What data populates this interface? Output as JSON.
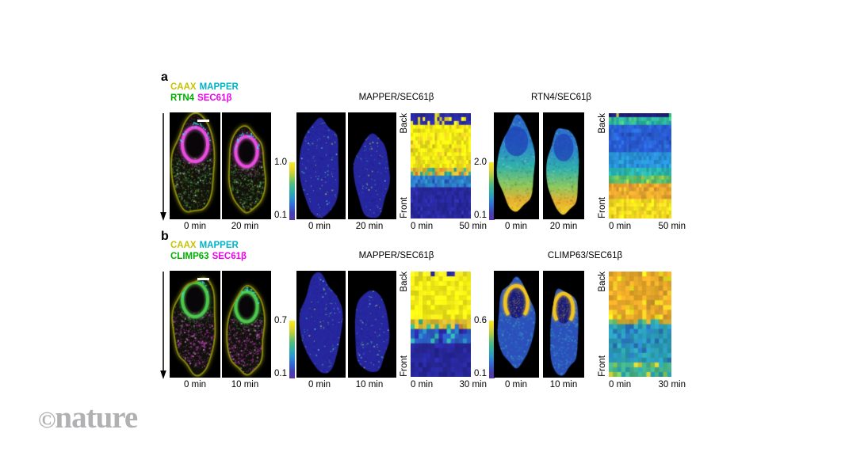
{
  "watermark": {
    "symbol": "©",
    "name": "nature"
  },
  "colors": {
    "caax": "#c9c400",
    "mapper": "#00b4c8",
    "green": "#00ae00",
    "sec61": "#ee00ee"
  },
  "panel_a": {
    "label": "a",
    "legend": {
      "caax": "CAAX",
      "mapper": "MAPPER",
      "marker2": "RTN4",
      "sec61": "SEC61β"
    },
    "merged": {
      "t0": "0 min",
      "t1": "20 min"
    },
    "cb1": {
      "max": "1.0",
      "min": "0.1"
    },
    "group1": {
      "title": "MAPPER/SEC61β",
      "t0": "0 min",
      "t1": "20 min",
      "kymo": {
        "back": "Back",
        "front": "Front",
        "t0": "0 min",
        "t1": "50 min"
      }
    },
    "cb2": {
      "max": "2.0",
      "min": "0.1"
    },
    "group2": {
      "title": "RTN4/SEC61β",
      "t0": "0 min",
      "t1": "20 min",
      "kymo": {
        "back": "Back",
        "front": "Front",
        "t0": "0 min",
        "t1": "50 min"
      }
    }
  },
  "panel_b": {
    "label": "b",
    "legend": {
      "caax": "CAAX",
      "mapper": "MAPPER",
      "marker2": "CLIMP63",
      "sec61": "SEC61β"
    },
    "merged": {
      "t0": "0 min",
      "t1": "10 min"
    },
    "cb1": {
      "max": "0.7",
      "min": "0.1"
    },
    "group1": {
      "title": "MAPPER/SEC61β",
      "t0": "0 min",
      "t1": "10 min",
      "kymo": {
        "back": "Back",
        "front": "Front",
        "t0": "0 min",
        "t1": "30 min"
      }
    },
    "cb2": {
      "max": "0.6",
      "min": "0.1"
    },
    "group2": {
      "title": "CLIMP63/SEC61β",
      "t0": "0 min",
      "t1": "10 min",
      "kymo": {
        "back": "Back",
        "front": "Front",
        "t0": "0 min",
        "t1": "30 min"
      }
    }
  },
  "paint": {
    "colorbar_stops": [
      "#f9ec1c",
      "#e7d52a",
      "#a0cc48",
      "#52bc7e",
      "#2fb2a8",
      "#2a93cf",
      "#3168d8",
      "#4343b4",
      "#5a35a8"
    ],
    "merged_a": {
      "kind": "merged",
      "body": "#11110a",
      "edge": "#8f8f0a",
      "ring": "#e84ce0",
      "ringY": 0.3,
      "dots": "#38e0f0",
      "lower": [
        "#52c852",
        "#6ad46a",
        "#37a847",
        "#c2e6c2",
        "#8f8f20"
      ],
      "lowerY": 0.66
    },
    "merged_b": {
      "kind": "merged",
      "body": "#10100a",
      "edge": "#8f8f0a",
      "ring": "#4cc84c",
      "ringY": 0.27,
      "dots": "#38e0f0",
      "lower": [
        "#e84ce8",
        "#d032d0",
        "#f078f0",
        "#b028b0",
        "#e0a0e0"
      ],
      "lowerY": 0.62
    },
    "ratio_mapper": {
      "kind": "speckle",
      "base": "#26269e",
      "noise": [
        "#1d1d85",
        "#3232b4"
      ],
      "speckles": [
        "#4040d0",
        "#28b4c8",
        "#50c878",
        "#d8d040",
        "#78d8e8"
      ]
    },
    "ratio_rtn4": {
      "kind": "grad",
      "stops": [
        [
          0,
          "#2b63c9"
        ],
        [
          0.3,
          "#2b86cd"
        ],
        [
          0.5,
          "#2fb0ab"
        ],
        [
          0.68,
          "#8cc85a"
        ],
        [
          0.82,
          "#e6b02e"
        ],
        [
          1,
          "#f2da24"
        ]
      ],
      "nucleus": "#1e3cb4"
    },
    "ratio_climp": {
      "kind": "ring",
      "base": "#2b50ba",
      "nucleus": "#141478",
      "ring": "#f0c422",
      "speckles": [
        "#2878c8",
        "#30a8c0",
        "#4cc8d8"
      ]
    },
    "kymo_a1": {
      "kind": "kymo",
      "cols": 25,
      "rows": 27,
      "bands": [
        [
          0.05,
          [
            "#27279c",
            "#27279c",
            "#2a2ab0",
            "#ddd82a"
          ]
        ],
        [
          0.11,
          [
            "#2a2aa8",
            "#ead92b",
            "#f0ea20"
          ]
        ],
        [
          0.52,
          [
            "#f3ec16",
            "#efe51b",
            "#f7f110",
            "#e5c52a"
          ]
        ],
        [
          0.585,
          [
            "#d8b830",
            "#38b488",
            "#e08c32",
            "#2fa8a0"
          ]
        ],
        [
          0.7,
          [
            "#2f7ec8",
            "#2a6ac0",
            "#2a90c8",
            "#2456b8"
          ]
        ],
        [
          1,
          [
            "#28289a",
            "#2a2aa6",
            "#232390",
            "#2e2eb0"
          ]
        ]
      ]
    },
    "kymo_a2": {
      "kind": "kymo",
      "cols": 25,
      "rows": 27,
      "bands": [
        [
          0.045,
          [
            "#1c1c74",
            "#202084",
            "#28b478",
            "#c8d040"
          ]
        ],
        [
          0.1,
          [
            "#2cb49c",
            "#30b8a8",
            "#28a0b0",
            "#48c880"
          ]
        ],
        [
          0.38,
          [
            "#2a5cd4",
            "#2a64d8",
            "#2452c8",
            "#2a70d8"
          ]
        ],
        [
          0.52,
          [
            "#2890d8",
            "#28a0d4",
            "#2a88d0"
          ]
        ],
        [
          0.6,
          [
            "#28b0b0",
            "#2ab4a0",
            "#30b8b8"
          ]
        ],
        [
          0.68,
          [
            "#55c070",
            "#80cc58",
            "#b0d444"
          ]
        ],
        [
          0.8,
          [
            "#e8a830",
            "#ecb82c",
            "#e09830"
          ]
        ],
        [
          1,
          [
            "#f2d822",
            "#f6ec18",
            "#f8f414",
            "#eec426"
          ]
        ]
      ]
    },
    "kymo_b1": {
      "kind": "kymo",
      "cols": 15,
      "rows": 22,
      "bands": [
        [
          0.06,
          [
            "#f0ea20",
            "#2a2aa4",
            "#e8e02a"
          ]
        ],
        [
          0.46,
          [
            "#f3ec16",
            "#efe51b",
            "#f7f110"
          ]
        ],
        [
          0.56,
          [
            "#d8b830",
            "#38b488",
            "#e08c32",
            "#2a6ac0",
            "#f0e020"
          ]
        ],
        [
          0.7,
          [
            "#2a5cc0",
            "#2a2aa8",
            "#2890c8",
            "#30b0a8"
          ]
        ],
        [
          1,
          [
            "#28289a",
            "#2a2aa6",
            "#232390"
          ]
        ]
      ]
    },
    "kymo_b2": {
      "kind": "kymo",
      "cols": 15,
      "rows": 22,
      "bands": [
        [
          0.45,
          [
            "#e8a828",
            "#f0c824",
            "#ecb02c",
            "#f4e41c",
            "#d89c30"
          ]
        ],
        [
          0.52,
          [
            "#d0a830",
            "#68b868",
            "#30a8a8"
          ]
        ],
        [
          0.88,
          [
            "#2a9ab8",
            "#2a86c0",
            "#30a8b0",
            "#2a74bc"
          ]
        ],
        [
          1,
          [
            "#44b088",
            "#80c858",
            "#2aa0b0",
            "#d0cc38"
          ]
        ]
      ]
    }
  }
}
